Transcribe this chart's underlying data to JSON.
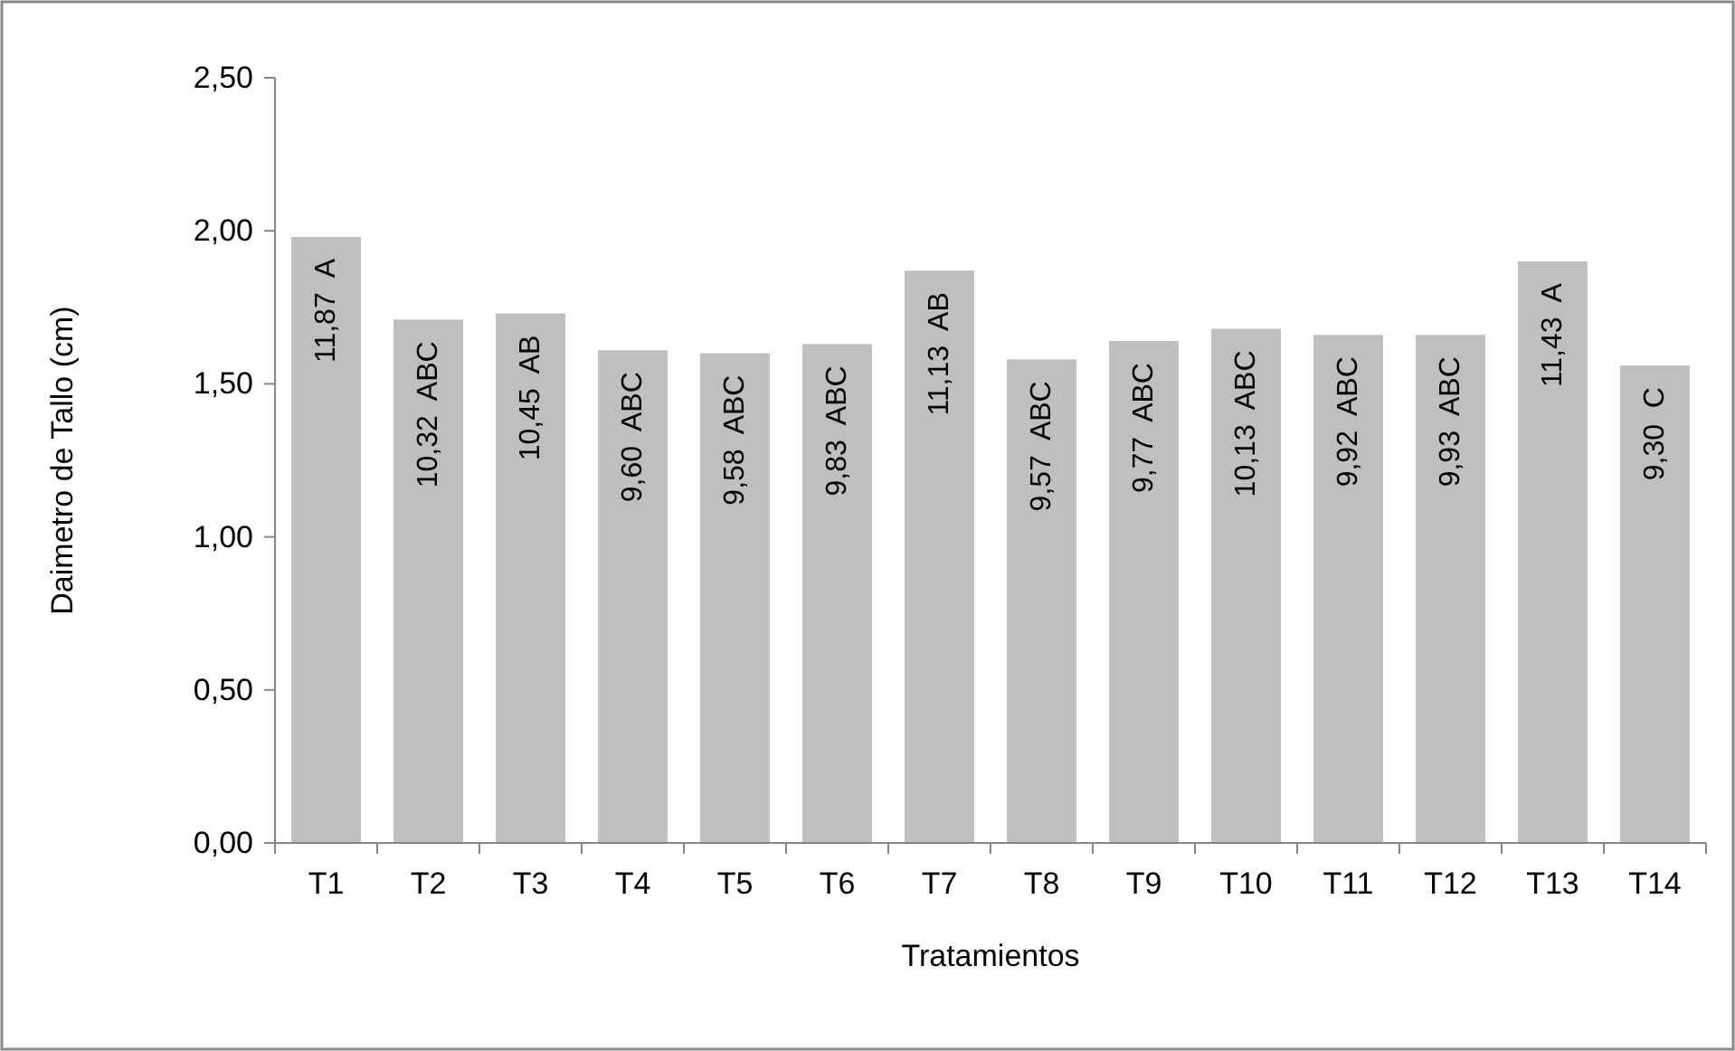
{
  "chart_data": {
    "type": "bar",
    "xlabel": "Tratamientos",
    "ylabel": "Daimetro de Tallo (cm)",
    "categories": [
      "T1",
      "T2",
      "T3",
      "T4",
      "T5",
      "T6",
      "T7",
      "T8",
      "T9",
      "T10",
      "T11",
      "T12",
      "T13",
      "T14"
    ],
    "values": [
      1.98,
      1.71,
      1.73,
      1.61,
      1.6,
      1.63,
      1.87,
      1.58,
      1.64,
      1.68,
      1.66,
      1.66,
      1.9,
      1.56
    ],
    "annotations": [
      {
        "text": "11,87  A",
        "x": "T1",
        "y": 1.98
      },
      {
        "text": "10,32  ABC",
        "x": "T2",
        "y": 1.71
      },
      {
        "text": "10,45  AB",
        "x": "T3",
        "y": 1.73
      },
      {
        "text": "9,60  ABC",
        "x": "T4",
        "y": 1.61
      },
      {
        "text": "9,58  ABC",
        "x": "T5",
        "y": 1.6
      },
      {
        "text": "9,83  ABC",
        "x": "T6",
        "y": 1.63
      },
      {
        "text": "11,13  AB",
        "x": "T7",
        "y": 1.87
      },
      {
        "text": "9,57  ABC",
        "x": "T8",
        "y": 1.58
      },
      {
        "text": "9,77  ABC",
        "x": "T9",
        "y": 1.64
      },
      {
        "text": "10,13  ABC",
        "x": "T10",
        "y": 1.68
      },
      {
        "text": "9,92  ABC",
        "x": "T11",
        "y": 1.66
      },
      {
        "text": "9,93  ABC",
        "x": "T12",
        "y": 1.66
      },
      {
        "text": "11,43  A",
        "x": "T13",
        "y": 1.9
      },
      {
        "text": "9,30  C",
        "x": "T14",
        "y": 1.56
      }
    ],
    "color": "#bfbfbf",
    "ylim": [
      0,
      2.5
    ],
    "yticks": [
      {
        "value": 0,
        "label": "0,00"
      },
      {
        "value": 0.5,
        "label": "0,50"
      },
      {
        "value": 1,
        "label": "1,00"
      },
      {
        "value": 1.5,
        "label": "1,50"
      },
      {
        "value": 2,
        "label": "2,00"
      },
      {
        "value": 2.5,
        "label": "2,50"
      }
    ],
    "grid": false
  }
}
